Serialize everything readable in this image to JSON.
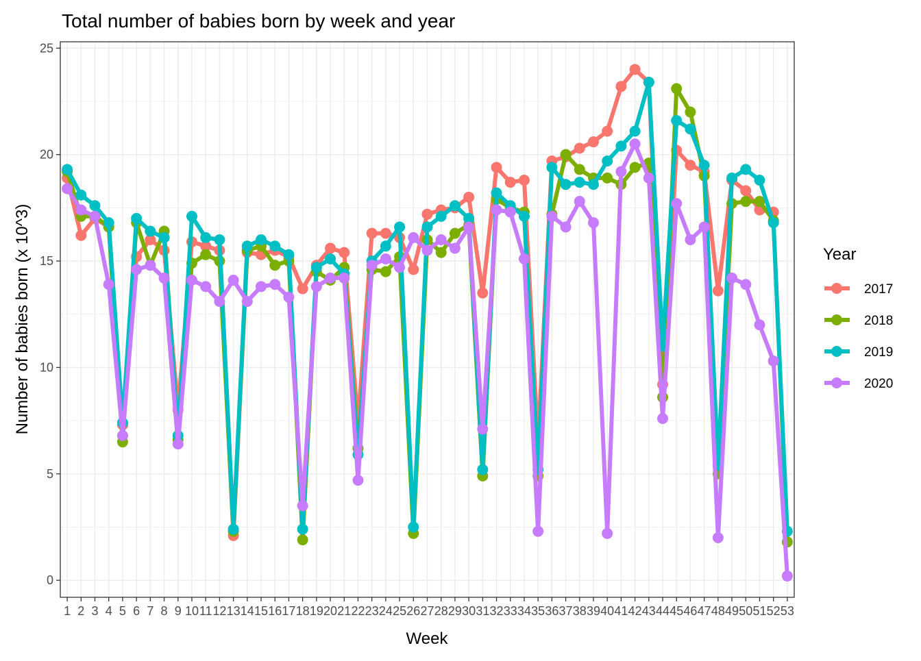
{
  "chart_data": {
    "type": "line",
    "title": "Total number of babies born by week and year",
    "xlabel": "Week",
    "ylabel": "Number of babies born (x 10^3)",
    "xlim": [
      0.5,
      53.5
    ],
    "ylim": [
      -0.8,
      25.3
    ],
    "y_ticks": [
      0,
      5,
      10,
      15,
      20,
      25
    ],
    "x": [
      1,
      2,
      3,
      4,
      5,
      6,
      7,
      8,
      9,
      10,
      11,
      12,
      13,
      14,
      15,
      16,
      17,
      18,
      19,
      20,
      21,
      22,
      23,
      24,
      25,
      26,
      27,
      28,
      29,
      30,
      31,
      32,
      33,
      34,
      35,
      36,
      37,
      38,
      39,
      40,
      41,
      42,
      43,
      44,
      45,
      46,
      47,
      48,
      49,
      50,
      51,
      52,
      53
    ],
    "x_tick_labels": [
      "1",
      "2",
      "3",
      "4",
      "5",
      "6",
      "7",
      "8",
      "9",
      "10",
      "11",
      "12",
      "13",
      "14",
      "15",
      "16",
      "17",
      "18",
      "19",
      "20",
      "21",
      "22",
      "23",
      "24",
      "25",
      "26",
      "27",
      "28",
      "29",
      "30",
      "31",
      "32",
      "33",
      "34",
      "35",
      "36",
      "37",
      "38",
      "39",
      "40",
      "41",
      "42",
      "43",
      "44",
      "45",
      "46",
      "47",
      "48",
      "49",
      "50",
      "51",
      "52",
      "53"
    ],
    "grid": true,
    "legend": {
      "title": "Year",
      "position": "right"
    },
    "series": [
      {
        "name": "2017",
        "color": "#F8766D",
        "values": [
          18.9,
          16.2,
          17.0,
          16.6,
          7.3,
          15.2,
          16.0,
          15.5,
          8.0,
          15.9,
          15.7,
          15.5,
          2.1,
          15.4,
          15.3,
          15.5,
          15.2,
          13.7,
          14.8,
          15.6,
          15.4,
          7.4,
          16.3,
          16.3,
          16.1,
          14.6,
          17.2,
          17.4,
          17.5,
          18.0,
          13.5,
          19.4,
          18.7,
          18.8,
          6.4,
          19.7,
          19.9,
          20.3,
          20.6,
          21.1,
          23.2,
          24.0,
          23.4,
          9.2,
          20.2,
          19.5,
          19.2,
          13.6,
          18.8,
          18.3,
          17.4,
          17.3,
          null
        ]
      },
      {
        "name": "2018",
        "color": "#7CAE00",
        "values": [
          19.2,
          17.1,
          17.1,
          16.6,
          6.5,
          16.8,
          14.8,
          16.4,
          6.6,
          14.9,
          15.3,
          15.0,
          2.3,
          15.5,
          15.7,
          14.8,
          15.0,
          1.9,
          14.5,
          14.1,
          14.7,
          6.2,
          14.6,
          14.5,
          15.2,
          2.2,
          16.0,
          15.4,
          16.3,
          16.7,
          4.9,
          17.9,
          17.5,
          17.3,
          4.9,
          17.2,
          20.0,
          19.3,
          18.9,
          18.9,
          18.6,
          19.4,
          19.6,
          8.6,
          23.1,
          22.0,
          19.0,
          5.0,
          17.7,
          17.8,
          17.8,
          16.9,
          1.8
        ]
      },
      {
        "name": "2019",
        "color": "#00BFC4",
        "values": [
          19.3,
          18.1,
          17.6,
          16.8,
          7.4,
          17.0,
          16.4,
          16.1,
          6.8,
          17.1,
          16.1,
          16.0,
          2.4,
          15.7,
          16.0,
          15.7,
          15.3,
          2.4,
          14.7,
          15.1,
          14.4,
          5.9,
          15.0,
          15.7,
          16.6,
          2.5,
          16.6,
          17.1,
          17.6,
          17.0,
          5.2,
          18.2,
          17.6,
          17.1,
          5.2,
          19.4,
          18.6,
          18.7,
          18.6,
          19.7,
          20.4,
          21.1,
          23.4,
          11.0,
          21.6,
          21.2,
          19.5,
          5.4,
          18.9,
          19.3,
          18.8,
          16.8,
          2.3
        ]
      },
      {
        "name": "2020",
        "color": "#C77CFF",
        "values": [
          18.4,
          17.4,
          17.1,
          13.9,
          6.8,
          14.6,
          14.8,
          14.2,
          6.4,
          14.1,
          13.8,
          13.1,
          14.1,
          13.1,
          13.8,
          13.9,
          13.3,
          3.5,
          13.8,
          14.2,
          14.2,
          4.7,
          14.8,
          15.1,
          14.7,
          16.1,
          15.5,
          16.0,
          15.6,
          16.6,
          7.1,
          17.4,
          17.3,
          15.1,
          2.3,
          17.1,
          16.6,
          17.8,
          16.8,
          2.2,
          19.2,
          20.5,
          18.9,
          7.6,
          17.7,
          16.0,
          16.6,
          2.0,
          14.2,
          13.9,
          12.0,
          10.3,
          0.2
        ]
      }
    ]
  }
}
